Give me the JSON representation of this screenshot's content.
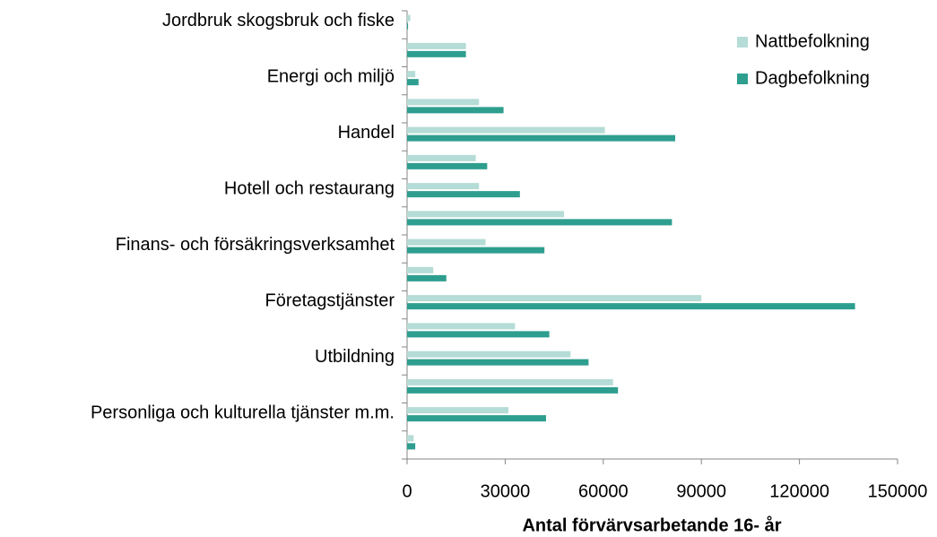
{
  "chart_data": {
    "type": "barh",
    "xlabel": "Antal förvärvsarbetande 16- år",
    "categories": [
      "Jordbruk skogsbruk och fiske",
      null,
      "Energi och miljö",
      null,
      "Handel",
      null,
      "Hotell och restaurang",
      null,
      "Finans- och försäkringsverksamhet",
      null,
      "Företagstjänster",
      null,
      "Utbildning",
      null,
      "Personliga och kulturella tjänster m.m.",
      null
    ],
    "series": [
      {
        "name": "Nattbefolkning",
        "color": "#b5dcd6",
        "values": [
          1000,
          18000,
          2500,
          22000,
          60500,
          21000,
          22000,
          48000,
          24000,
          8000,
          90000,
          33000,
          50000,
          63000,
          31000,
          2000
        ]
      },
      {
        "name": "Dagbefolkning",
        "color": "#2e9e8f",
        "values": [
          300,
          18000,
          3500,
          29500,
          82000,
          24500,
          34500,
          81000,
          42000,
          12000,
          137000,
          43500,
          55500,
          64500,
          42500,
          2500
        ]
      }
    ],
    "xlim": [
      0,
      150000
    ],
    "xticks": [
      0,
      30000,
      60000,
      90000,
      120000,
      150000
    ],
    "legend": "upper right",
    "grid": false
  }
}
